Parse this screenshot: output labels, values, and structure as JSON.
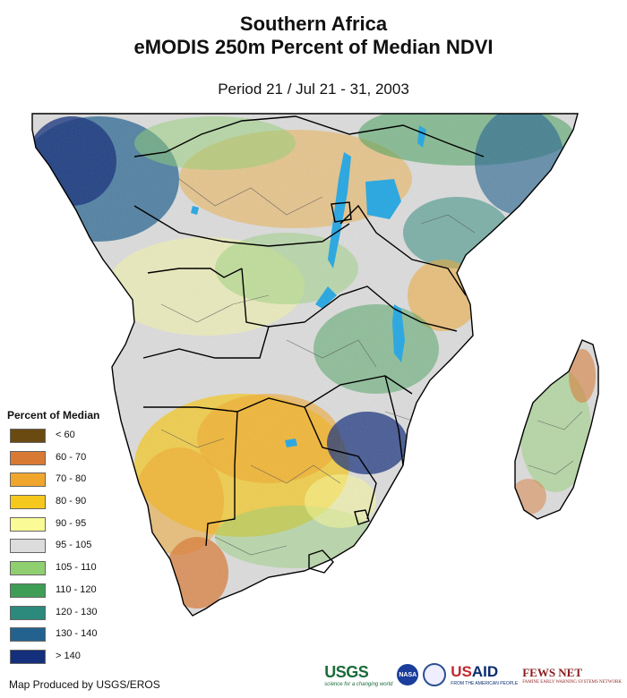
{
  "title_line1": "Southern Africa",
  "title_line2": "eMODIS 250m Percent of Median NDVI",
  "period": "Period 21 / Jul 21 - 31, 2003",
  "legend": {
    "title": "Percent of Median",
    "items": [
      {
        "label": "< 60",
        "color": "#6b4a12"
      },
      {
        "label": "60 - 70",
        "color": "#d97a34"
      },
      {
        "label": "70 - 80",
        "color": "#f0a62c"
      },
      {
        "label": "80 - 90",
        "color": "#f5c81e"
      },
      {
        "label": "90 - 95",
        "color": "#fafa96"
      },
      {
        "label": "95 - 105",
        "color": "#dcdcdc"
      },
      {
        "label": "105 - 110",
        "color": "#8fcf6f"
      },
      {
        "label": "110 - 120",
        "color": "#3f9e56"
      },
      {
        "label": "120 - 130",
        "color": "#2b8a7c"
      },
      {
        "label": "130 - 140",
        "color": "#23628f"
      },
      {
        "label": "> 140",
        "color": "#142f7c"
      }
    ]
  },
  "credit": "Map Produced by USGS/EROS",
  "logos": {
    "usgs": "USGS",
    "usgs_tagline": "science for a changing world",
    "nasa": "NASA",
    "usaid_us": "US",
    "usaid_aid": "AID",
    "usaid_tagline": "FROM THE AMERICAN PEOPLE",
    "fews": "FEWS NET",
    "fews_tagline": "FAMINE EARLY WARNING SYSTEMS NETWORK"
  },
  "colors": {
    "land_base": "#dcdcdc",
    "water": "#2fa8e0",
    "border": "#000000",
    "admin_border": "#555555"
  }
}
